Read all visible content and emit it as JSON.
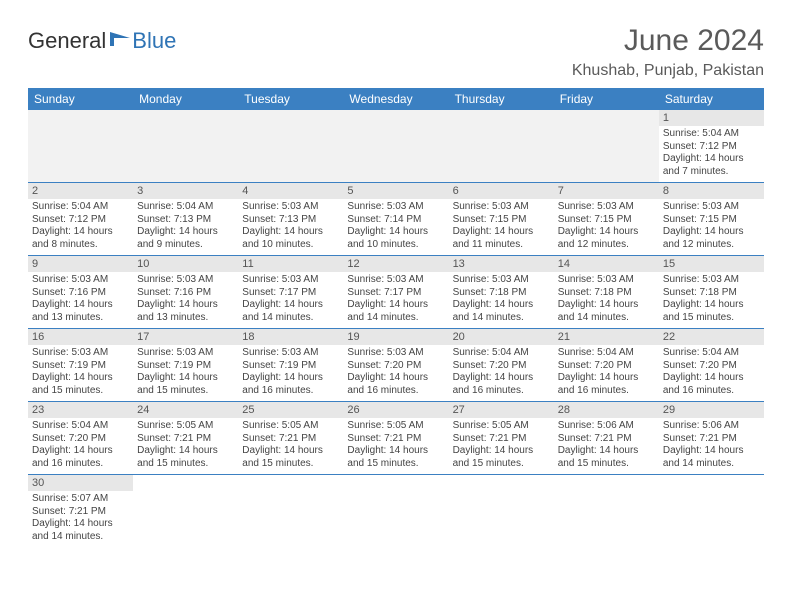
{
  "logo": {
    "general": "General",
    "blue": "Blue",
    "flag_color": "#2f74b5"
  },
  "title": "June 2024",
  "location": "Khushab, Punjab, Pakistan",
  "colors": {
    "header_bg": "#3b80c2",
    "header_text": "#ffffff",
    "daynum_bg": "#e7e7e7",
    "empty_bg": "#f2f2f2",
    "rule": "#3b80c2",
    "body_text": "#444444"
  },
  "weekdays": [
    "Sunday",
    "Monday",
    "Tuesday",
    "Wednesday",
    "Thursday",
    "Friday",
    "Saturday"
  ],
  "weeks": [
    [
      null,
      null,
      null,
      null,
      null,
      null,
      {
        "n": "1",
        "sr": "5:04 AM",
        "ss": "7:12 PM",
        "dl1": "14 hours",
        "dl2": "and 7 minutes."
      }
    ],
    [
      {
        "n": "2",
        "sr": "5:04 AM",
        "ss": "7:12 PM",
        "dl1": "14 hours",
        "dl2": "and 8 minutes."
      },
      {
        "n": "3",
        "sr": "5:04 AM",
        "ss": "7:13 PM",
        "dl1": "14 hours",
        "dl2": "and 9 minutes."
      },
      {
        "n": "4",
        "sr": "5:03 AM",
        "ss": "7:13 PM",
        "dl1": "14 hours",
        "dl2": "and 10 minutes."
      },
      {
        "n": "5",
        "sr": "5:03 AM",
        "ss": "7:14 PM",
        "dl1": "14 hours",
        "dl2": "and 10 minutes."
      },
      {
        "n": "6",
        "sr": "5:03 AM",
        "ss": "7:15 PM",
        "dl1": "14 hours",
        "dl2": "and 11 minutes."
      },
      {
        "n": "7",
        "sr": "5:03 AM",
        "ss": "7:15 PM",
        "dl1": "14 hours",
        "dl2": "and 12 minutes."
      },
      {
        "n": "8",
        "sr": "5:03 AM",
        "ss": "7:15 PM",
        "dl1": "14 hours",
        "dl2": "and 12 minutes."
      }
    ],
    [
      {
        "n": "9",
        "sr": "5:03 AM",
        "ss": "7:16 PM",
        "dl1": "14 hours",
        "dl2": "and 13 minutes."
      },
      {
        "n": "10",
        "sr": "5:03 AM",
        "ss": "7:16 PM",
        "dl1": "14 hours",
        "dl2": "and 13 minutes."
      },
      {
        "n": "11",
        "sr": "5:03 AM",
        "ss": "7:17 PM",
        "dl1": "14 hours",
        "dl2": "and 14 minutes."
      },
      {
        "n": "12",
        "sr": "5:03 AM",
        "ss": "7:17 PM",
        "dl1": "14 hours",
        "dl2": "and 14 minutes."
      },
      {
        "n": "13",
        "sr": "5:03 AM",
        "ss": "7:18 PM",
        "dl1": "14 hours",
        "dl2": "and 14 minutes."
      },
      {
        "n": "14",
        "sr": "5:03 AM",
        "ss": "7:18 PM",
        "dl1": "14 hours",
        "dl2": "and 14 minutes."
      },
      {
        "n": "15",
        "sr": "5:03 AM",
        "ss": "7:18 PM",
        "dl1": "14 hours",
        "dl2": "and 15 minutes."
      }
    ],
    [
      {
        "n": "16",
        "sr": "5:03 AM",
        "ss": "7:19 PM",
        "dl1": "14 hours",
        "dl2": "and 15 minutes."
      },
      {
        "n": "17",
        "sr": "5:03 AM",
        "ss": "7:19 PM",
        "dl1": "14 hours",
        "dl2": "and 15 minutes."
      },
      {
        "n": "18",
        "sr": "5:03 AM",
        "ss": "7:19 PM",
        "dl1": "14 hours",
        "dl2": "and 16 minutes."
      },
      {
        "n": "19",
        "sr": "5:03 AM",
        "ss": "7:20 PM",
        "dl1": "14 hours",
        "dl2": "and 16 minutes."
      },
      {
        "n": "20",
        "sr": "5:04 AM",
        "ss": "7:20 PM",
        "dl1": "14 hours",
        "dl2": "and 16 minutes."
      },
      {
        "n": "21",
        "sr": "5:04 AM",
        "ss": "7:20 PM",
        "dl1": "14 hours",
        "dl2": "and 16 minutes."
      },
      {
        "n": "22",
        "sr": "5:04 AM",
        "ss": "7:20 PM",
        "dl1": "14 hours",
        "dl2": "and 16 minutes."
      }
    ],
    [
      {
        "n": "23",
        "sr": "5:04 AM",
        "ss": "7:20 PM",
        "dl1": "14 hours",
        "dl2": "and 16 minutes."
      },
      {
        "n": "24",
        "sr": "5:05 AM",
        "ss": "7:21 PM",
        "dl1": "14 hours",
        "dl2": "and 15 minutes."
      },
      {
        "n": "25",
        "sr": "5:05 AM",
        "ss": "7:21 PM",
        "dl1": "14 hours",
        "dl2": "and 15 minutes."
      },
      {
        "n": "26",
        "sr": "5:05 AM",
        "ss": "7:21 PM",
        "dl1": "14 hours",
        "dl2": "and 15 minutes."
      },
      {
        "n": "27",
        "sr": "5:05 AM",
        "ss": "7:21 PM",
        "dl1": "14 hours",
        "dl2": "and 15 minutes."
      },
      {
        "n": "28",
        "sr": "5:06 AM",
        "ss": "7:21 PM",
        "dl1": "14 hours",
        "dl2": "and 15 minutes."
      },
      {
        "n": "29",
        "sr": "5:06 AM",
        "ss": "7:21 PM",
        "dl1": "14 hours",
        "dl2": "and 14 minutes."
      }
    ],
    [
      {
        "n": "30",
        "sr": "5:07 AM",
        "ss": "7:21 PM",
        "dl1": "14 hours",
        "dl2": "and 14 minutes."
      },
      null,
      null,
      null,
      null,
      null,
      null
    ]
  ],
  "labels": {
    "sunrise": "Sunrise:",
    "sunset": "Sunset:",
    "daylight": "Daylight:"
  }
}
